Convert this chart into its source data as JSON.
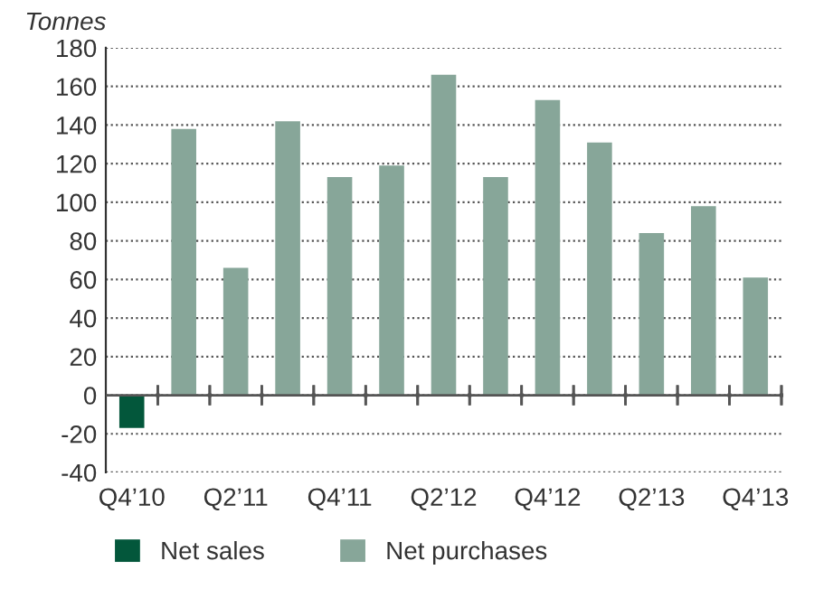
{
  "chart_data": {
    "type": "bar",
    "ylabel": "Tonnes",
    "categories": [
      "Q4’10",
      null,
      "Q2’11",
      null,
      "Q4’11",
      null,
      "Q2’12",
      null,
      "Q4’12",
      null,
      "Q2’13",
      null,
      "Q4’13"
    ],
    "series": [
      {
        "name": "Net sales",
        "color": "#03573b",
        "values": [
          -17,
          null,
          null,
          null,
          null,
          null,
          null,
          null,
          null,
          null,
          null,
          null,
          null
        ]
      },
      {
        "name": "Net purchases",
        "color": "#87a699",
        "values": [
          null,
          138,
          66,
          142,
          113,
          119,
          166,
          113,
          153,
          131,
          84,
          98,
          61
        ]
      }
    ],
    "ylim": [
      -40,
      180
    ],
    "yticks": [
      -40,
      -20,
      0,
      20,
      40,
      60,
      80,
      100,
      120,
      140,
      160,
      180
    ],
    "grid": "y",
    "legend": "bottom left"
  }
}
